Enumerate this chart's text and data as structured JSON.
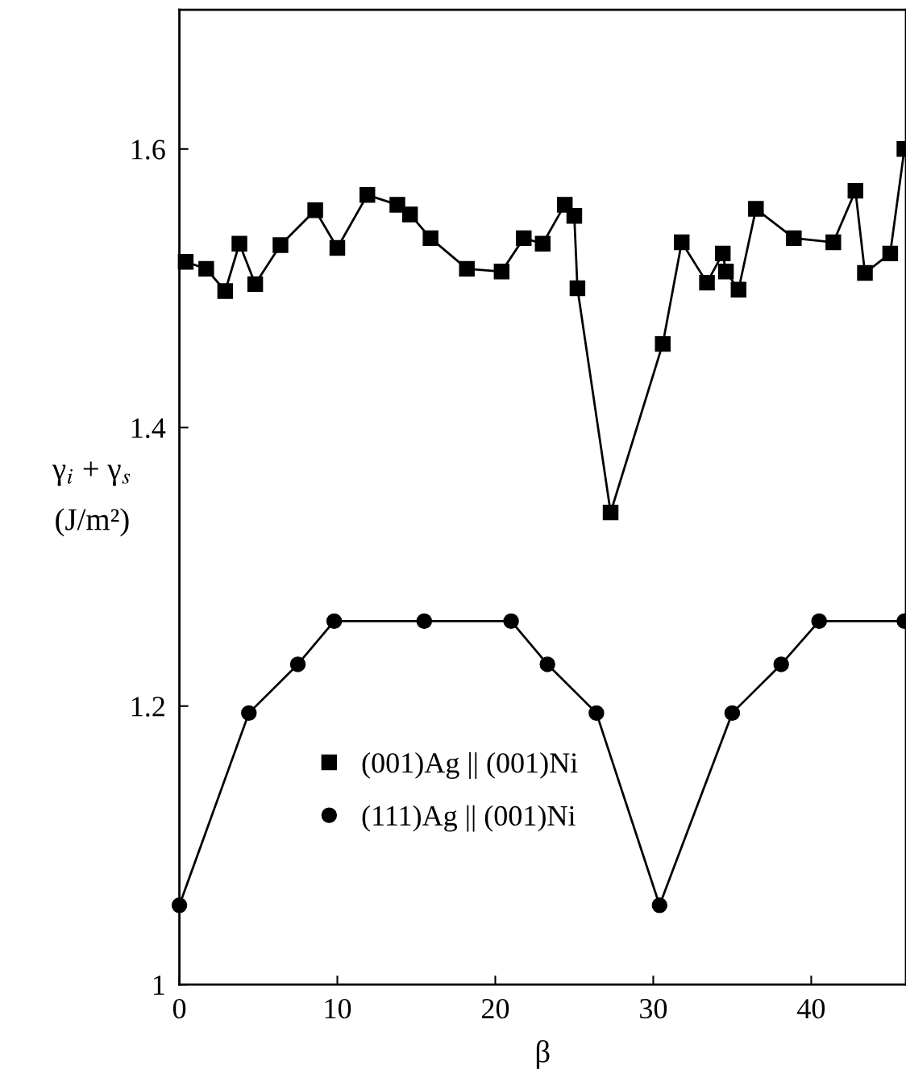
{
  "chart_data": {
    "type": "line",
    "xlabel": "β",
    "ylabel": "γ$_{i}$ + γ$_{s}$\n(J/m²)",
    "xlim": [
      0,
      46
    ],
    "xticks": [
      0,
      10,
      20,
      30,
      40
    ],
    "ylim": [
      1,
      1.7
    ],
    "yticks": [
      1,
      1.2,
      1.4,
      1.6
    ],
    "grid": false,
    "legend": "bottom",
    "line_style": "solid",
    "series": [
      {
        "name": "(001)Ag || (001)Ni",
        "color": "#000000",
        "marker": "square",
        "x": [
          0.4,
          1.7,
          2.9,
          3.8,
          4.8,
          6.4,
          8.6,
          10.0,
          11.9,
          13.8,
          14.6,
          15.9,
          18.2,
          20.4,
          21.8,
          23.0,
          24.4,
          25.0,
          25.2,
          27.3,
          30.6,
          31.8,
          33.4,
          34.4,
          34.6,
          35.4,
          36.5,
          38.9,
          41.4,
          42.8,
          43.4,
          45.0,
          45.9
        ],
        "values": [
          1.519,
          1.514,
          1.498,
          1.532,
          1.503,
          1.531,
          1.556,
          1.529,
          1.567,
          1.56,
          1.553,
          1.536,
          1.514,
          1.512,
          1.536,
          1.532,
          1.56,
          1.552,
          1.5,
          1.339,
          1.46,
          1.533,
          1.504,
          1.525,
          1.512,
          1.499,
          1.557,
          1.536,
          1.533,
          1.57,
          1.511,
          1.525,
          1.6
        ]
      },
      {
        "name": "(111)Ag || (001)Ni",
        "color": "#000000",
        "marker": "circle",
        "x": [
          0.0,
          4.4,
          7.5,
          9.8,
          15.5,
          21.0,
          23.3,
          26.4,
          30.4,
          35.0,
          38.1,
          40.5,
          45.9
        ],
        "values": [
          1.057,
          1.195,
          1.23,
          1.261,
          1.261,
          1.261,
          1.23,
          1.195,
          1.057,
          1.195,
          1.23,
          1.261,
          1.261
        ]
      }
    ]
  }
}
